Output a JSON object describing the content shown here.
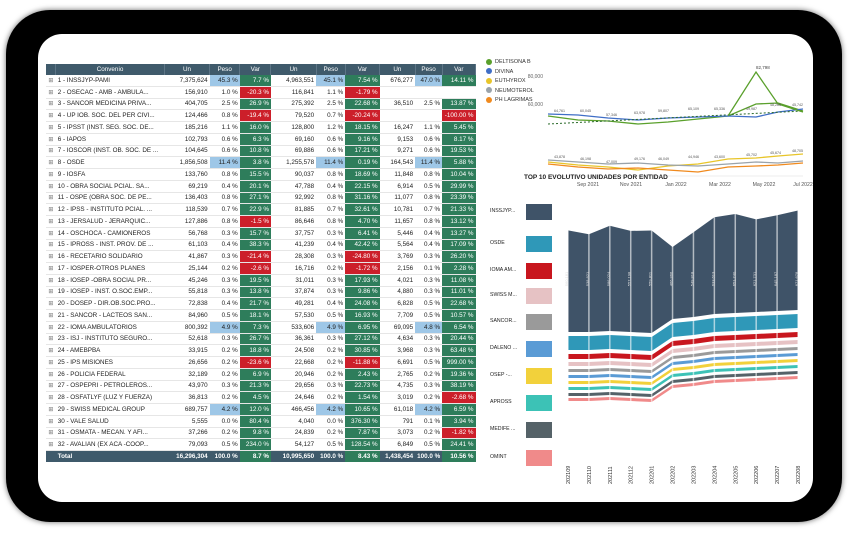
{
  "table": {
    "headers": [
      "Convenio",
      "Un",
      "Peso",
      "Var",
      "Un",
      "Peso",
      "Var",
      "Un",
      "Peso",
      "Var"
    ],
    "rows": [
      {
        "name": "1 - INSSJYP-PAMI",
        "un1": "7,375,624",
        "p1": "45.3 %",
        "v1": "7.7 %",
        "un2": "4,963,551",
        "p2": "45.1 %",
        "v2": "7.54 %",
        "un3": "676,277",
        "p3": "47.0 %",
        "v3": "14.11 %",
        "c1": "g",
        "c2": "g",
        "c3": "g",
        "h1": true,
        "h2": true,
        "h3": true
      },
      {
        "name": "2 - OSECAC - AMB - AMBULA...",
        "un1": "156,910",
        "p1": "1.0 %",
        "v1": "-20.3 %",
        "un2": "116,841",
        "p2": "1.1 %",
        "v2": "-1.79 %",
        "un3": "",
        "p3": "",
        "v3": "",
        "c1": "r",
        "c2": "r",
        "c3": ""
      },
      {
        "name": "3 - SANCOR MEDICINA PRIVA...",
        "un1": "404,705",
        "p1": "2.5 %",
        "v1": "26.9 %",
        "un2": "275,392",
        "p2": "2.5 %",
        "v2": "22.68 %",
        "un3": "36,510",
        "p3": "2.5 %",
        "v3": "13.87 %",
        "c1": "g",
        "c2": "g",
        "c3": "g"
      },
      {
        "name": "4 - UP IOB. SOC. DEL PER CIVI...",
        "un1": "124,466",
        "p1": "0.8 %",
        "v1": "-19.4 %",
        "un2": "79,520",
        "p2": "0.7 %",
        "v2": "-20.24 %",
        "un3": "",
        "p3": "",
        "v3": "-100.00 %",
        "c1": "r",
        "c2": "r",
        "c3": "r"
      },
      {
        "name": "5 - IPSST (INST. SEG. SOC. DE...",
        "un1": "185,216",
        "p1": "1.1 %",
        "v1": "16.0 %",
        "un2": "128,800",
        "p2": "1.2 %",
        "v2": "18.15 %",
        "un3": "16,247",
        "p3": "1.1 %",
        "v3": "5.45 %",
        "c1": "g",
        "c2": "g",
        "c3": "g"
      },
      {
        "name": "6 - IAPOS",
        "un1": "102,793",
        "p1": "0.6 %",
        "v1": "6.3 %",
        "un2": "69,160",
        "p2": "0.6 %",
        "v2": "9.16 %",
        "un3": "9,153",
        "p3": "0.6 %",
        "v3": "8.17 %",
        "c1": "g",
        "c2": "g",
        "c3": "g"
      },
      {
        "name": "7 - IOSCOR (INST. OB. SOC. DE ...",
        "un1": "104,645",
        "p1": "0.6 %",
        "v1": "10.8 %",
        "un2": "69,886",
        "p2": "0.6 %",
        "v2": "17.21 %",
        "un3": "9,271",
        "p3": "0.6 %",
        "v3": "19.53 %",
        "c1": "g",
        "c2": "g",
        "c3": "g"
      },
      {
        "name": "8 - OSDE",
        "un1": "1,856,508",
        "p1": "11.4 %",
        "v1": "3.8 %",
        "un2": "1,255,578",
        "p2": "11.4 %",
        "v2": "0.19 %",
        "un3": "164,543",
        "p3": "11.4 %",
        "v3": "5.88 %",
        "c1": "g",
        "c2": "g",
        "c3": "g",
        "h1": true,
        "h2": true,
        "h3": true
      },
      {
        "name": "9 - IOSFA",
        "un1": "133,760",
        "p1": "0.8 %",
        "v1": "15.5 %",
        "un2": "90,037",
        "p2": "0.8 %",
        "v2": "18.69 %",
        "un3": "11,848",
        "p3": "0.8 %",
        "v3": "10.04 %",
        "c1": "g",
        "c2": "g",
        "c3": "g"
      },
      {
        "name": "10 - OBRA SOCIAL PCIAL. SA...",
        "un1": "69,219",
        "p1": "0.4 %",
        "v1": "20.1 %",
        "un2": "47,788",
        "p2": "0.4 %",
        "v2": "22.15 %",
        "un3": "6,914",
        "p3": "0.5 %",
        "v3": "29.99 %",
        "c1": "g",
        "c2": "g",
        "c3": "g"
      },
      {
        "name": "11 - OSPE (OBRA SOC. DE PE...",
        "un1": "136,403",
        "p1": "0.8 %",
        "v1": "27.1 %",
        "un2": "92,992",
        "p2": "0.8 %",
        "v2": "31.16 %",
        "un3": "11,077",
        "p3": "0.8 %",
        "v3": "23.39 %",
        "c1": "g",
        "c2": "g",
        "c3": "g"
      },
      {
        "name": "12 - IPSS - INSTITUTO PCIAL. ...",
        "un1": "118,539",
        "p1": "0.7 %",
        "v1": "22.9 %",
        "un2": "81,885",
        "p2": "0.7 %",
        "v2": "32.61 %",
        "un3": "10,781",
        "p3": "0.7 %",
        "v3": "21.33 %",
        "c1": "g",
        "c2": "g",
        "c3": "g"
      },
      {
        "name": "13 - JERSALUD - JERARQUIC...",
        "un1": "127,886",
        "p1": "0.8 %",
        "v1": "-1.5 %",
        "un2": "86,646",
        "p2": "0.8 %",
        "v2": "4.70 %",
        "un3": "11,657",
        "p3": "0.8 %",
        "v3": "13.12 %",
        "c1": "r",
        "c2": "g",
        "c3": "g"
      },
      {
        "name": "14 - OSCHOCA - CAMIONEROS",
        "un1": "56,768",
        "p1": "0.3 %",
        "v1": "15.7 %",
        "un2": "37,757",
        "p2": "0.3 %",
        "v2": "6.41 %",
        "un3": "5,446",
        "p3": "0.4 %",
        "v3": "13.27 %",
        "c1": "g",
        "c2": "g",
        "c3": "g"
      },
      {
        "name": "15 - IPROSS - INST. PROV. DE ...",
        "un1": "61,103",
        "p1": "0.4 %",
        "v1": "38.3 %",
        "un2": "41,239",
        "p2": "0.4 %",
        "v2": "42.42 %",
        "un3": "5,564",
        "p3": "0.4 %",
        "v3": "17.09 %",
        "c1": "g",
        "c2": "g",
        "c3": "g"
      },
      {
        "name": "16 - RECETARIO SOLIDARIO",
        "un1": "41,867",
        "p1": "0.3 %",
        "v1": "-21.4 %",
        "un2": "28,308",
        "p2": "0.3 %",
        "v2": "-24.80 %",
        "un3": "3,769",
        "p3": "0.3 %",
        "v3": "26.20 %",
        "c1": "r",
        "c2": "r",
        "c3": "g"
      },
      {
        "name": "17 - IOSPER-OTROS PLANES",
        "un1": "25,144",
        "p1": "0.2 %",
        "v1": "-2.6 %",
        "un2": "16,716",
        "p2": "0.2 %",
        "v2": "-1.72 %",
        "un3": "2,156",
        "p3": "0.1 %",
        "v3": "2.28 %",
        "c1": "r",
        "c2": "r",
        "c3": "g"
      },
      {
        "name": "18 - IOSEP -OBRA SOCIAL PR...",
        "un1": "45,246",
        "p1": "0.3 %",
        "v1": "19.5 %",
        "un2": "31,011",
        "p2": "0.3 %",
        "v2": "17.93 %",
        "un3": "4,021",
        "p3": "0.3 %",
        "v3": "11.08 %",
        "c1": "g",
        "c2": "g",
        "c3": "g"
      },
      {
        "name": "19 - IOSEP - INST. O.SOC.EMP...",
        "un1": "55,818",
        "p1": "0.3 %",
        "v1": "13.8 %",
        "un2": "37,874",
        "p2": "0.3 %",
        "v2": "9.86 %",
        "un3": "4,880",
        "p3": "0.3 %",
        "v3": "11.01 %",
        "c1": "g",
        "c2": "g",
        "c3": "g"
      },
      {
        "name": "20 - DOSEP - DIR.OB.SOC.PRO...",
        "un1": "72,838",
        "p1": "0.4 %",
        "v1": "21.7 %",
        "un2": "49,281",
        "p2": "0.4 %",
        "v2": "24.08 %",
        "un3": "6,828",
        "p3": "0.5 %",
        "v3": "22.68 %",
        "c1": "g",
        "c2": "g",
        "c3": "g"
      },
      {
        "name": "21 - SANCOR - LACTEOS SAN...",
        "un1": "84,960",
        "p1": "0.5 %",
        "v1": "18.1 %",
        "un2": "57,530",
        "p2": "0.5 %",
        "v2": "16.93 %",
        "un3": "7,709",
        "p3": "0.5 %",
        "v3": "10.57 %",
        "c1": "g",
        "c2": "g",
        "c3": "g"
      },
      {
        "name": "22 - IOMA AMBULATORIOS",
        "un1": "800,392",
        "p1": "4.9 %",
        "v1": "7.3 %",
        "un2": "533,606",
        "p2": "4.9 %",
        "v2": "6.95 %",
        "un3": "69,095",
        "p3": "4.8 %",
        "v3": "6.54 %",
        "c1": "g",
        "c2": "g",
        "c3": "g",
        "h1": true,
        "h2": true,
        "h3": true
      },
      {
        "name": "23 - ISJ - INSTITUTO SEGURO...",
        "un1": "52,618",
        "p1": "0.3 %",
        "v1": "26.7 %",
        "un2": "36,361",
        "p2": "0.3 %",
        "v2": "27.12 %",
        "un3": "4,634",
        "p3": "0.3 %",
        "v3": "20.44 %",
        "c1": "g",
        "c2": "g",
        "c3": "g"
      },
      {
        "name": "24 - AMEBPBA",
        "un1": "33,915",
        "p1": "0.2 %",
        "v1": "18.8 %",
        "un2": "24,508",
        "p2": "0.2 %",
        "v2": "30.85 %",
        "un3": "3,968",
        "p3": "0.3 %",
        "v3": "63.48 %",
        "c1": "g",
        "c2": "g",
        "c3": "g"
      },
      {
        "name": "25 - IPS MISIONES",
        "un1": "26,656",
        "p1": "0.2 %",
        "v1": "-23.6 %",
        "un2": "22,668",
        "p2": "0.2 %",
        "v2": "-11.88 %",
        "un3": "6,691",
        "p3": "0.5 %",
        "v3": "999.00 %",
        "c1": "r",
        "c2": "r",
        "c3": "g"
      },
      {
        "name": "26 - POLICIA FEDERAL",
        "un1": "32,189",
        "p1": "0.2 %",
        "v1": "6.9 %",
        "un2": "20,946",
        "p2": "0.2 %",
        "v2": "2.43 %",
        "un3": "2,765",
        "p3": "0.2 %",
        "v3": "19.36 %",
        "c1": "g",
        "c2": "g",
        "c3": "g"
      },
      {
        "name": "27 - OSPEPRI - PETROLEROS...",
        "un1": "43,970",
        "p1": "0.3 %",
        "v1": "21.3 %",
        "un2": "29,656",
        "p2": "0.3 %",
        "v2": "22.73 %",
        "un3": "4,735",
        "p3": "0.3 %",
        "v3": "38.19 %",
        "c1": "g",
        "c2": "g",
        "c3": "g"
      },
      {
        "name": "28 - OSFATLYF (LUZ Y FUERZA)",
        "un1": "36,813",
        "p1": "0.2 %",
        "v1": "4.5 %",
        "un2": "24,646",
        "p2": "0.2 %",
        "v2": "1.54 %",
        "un3": "3,019",
        "p3": "0.2 %",
        "v3": "-2.68 %",
        "c1": "g",
        "c2": "g",
        "c3": "r"
      },
      {
        "name": "29 - SWISS MEDICAL GROUP",
        "un1": "689,757",
        "p1": "4.2 %",
        "v1": "12.0 %",
        "un2": "466,456",
        "p2": "4.2 %",
        "v2": "10.65 %",
        "un3": "61,018",
        "p3": "4.2 %",
        "v3": "6.59 %",
        "c1": "g",
        "c2": "g",
        "c3": "g",
        "h1": true,
        "h2": true,
        "h3": true
      },
      {
        "name": "30 - VALE SALUD",
        "un1": "5,555",
        "p1": "0.0 %",
        "v1": "80.4 %",
        "un2": "4,040",
        "p2": "0.0 %",
        "v2": "376.30 %",
        "un3": "791",
        "p3": "0.1 %",
        "v3": "3.94 %",
        "c1": "g",
        "c2": "g",
        "c3": "g"
      },
      {
        "name": "31 - OSMATA - MECAN. Y AFI...",
        "un1": "37,266",
        "p1": "0.2 %",
        "v1": "9.8 %",
        "un2": "24,839",
        "p2": "0.2 %",
        "v2": "7.87 %",
        "un3": "3,073",
        "p3": "0.2 %",
        "v3": "-1.82 %",
        "c1": "g",
        "c2": "g",
        "c3": "r"
      },
      {
        "name": "32 - AVALIAN (EX ACA -COOP...",
        "un1": "79,093",
        "p1": "0.5 %",
        "v1": "234.0 %",
        "un2": "54,127",
        "p2": "0.5 %",
        "v2": "128.54 %",
        "un3": "6,849",
        "p3": "0.5 %",
        "v3": "24.41 %",
        "c1": "g",
        "c2": "g",
        "c3": "g"
      }
    ],
    "total": {
      "name": "Total",
      "un1": "16,296,304",
      "p1": "100.0 %",
      "v1": "8.7 %",
      "un2": "10,995,650",
      "p2": "100.0 %",
      "v2": "8.43 %",
      "un3": "1,438,454",
      "p3": "100.0 %",
      "v3": "10.56 %"
    }
  },
  "line_chart": {
    "legend": [
      {
        "name": "DELTISONA B",
        "color": "#5aa02c"
      },
      {
        "name": "DIVINA",
        "color": "#3f6ec6"
      },
      {
        "name": "EUTHYROX",
        "color": "#e8c52a"
      },
      {
        "name": "NEUMOTEROL",
        "color": "#9aa3aa"
      },
      {
        "name": "PH LAGRIMAS",
        "color": "#f08a1e"
      }
    ],
    "yticks": [
      "80,000",
      "60,000"
    ],
    "xticks": [
      "Sep 2021",
      "Nov 2021",
      "Jan 2022",
      "Mar 2022",
      "May 2022",
      "Jul 2022"
    ],
    "peak_label": "82,798",
    "point_labels": [
      "64,761",
      "60,045",
      "57,346",
      "63,978",
      "59,807",
      "65,109",
      "65,336",
      "49,987",
      "48,265",
      "45,742",
      "43,878",
      "46,198",
      "47,009",
      "49,176",
      "46,049",
      "44,946",
      "43,600",
      "45,702",
      "45,674",
      "48,705"
    ]
  },
  "ribbon_chart": {
    "title": "TOP 10  EVOLUTIVO UNIDADES POR ENTIDAD",
    "entities": [
      {
        "label": "INSSJYP...",
        "color": "#3f5368"
      },
      {
        "label": "OSDE",
        "color": "#2f98b8"
      },
      {
        "label": "IOMA AM...",
        "color": "#c8161e"
      },
      {
        "label": "SWISS M...",
        "color": "#e6c2c4"
      },
      {
        "label": "SANCOR...",
        "color": "#9a9a9a"
      },
      {
        "label": "DALENO ...",
        "color": "#5a9bd5"
      },
      {
        "label": "OSEP -...",
        "color": "#f2d13b"
      },
      {
        "label": "APROSS",
        "color": "#3cc2b6"
      },
      {
        "label": "MEDIFE ...",
        "color": "#556268"
      },
      {
        "label": "OMINT",
        "color": "#f08a8a"
      }
    ],
    "months": [
      "202109",
      "202110",
      "202111",
      "202112",
      "202201",
      "202202",
      "202203",
      "202204",
      "202205",
      "202206",
      "202207",
      "202208"
    ],
    "top_values": [
      "560,181",
      "538,821",
      "586,024",
      "557,198",
      "559,811",
      "466,866",
      "549,818",
      "633,613",
      "651,740",
      "621,731",
      "645,187",
      "671,678"
    ]
  },
  "chart_data": {
    "type": "area",
    "title": "TOP 10  EVOLUTIVO UNIDADES POR ENTIDAD",
    "categories": [
      "202109",
      "202110",
      "202111",
      "202112",
      "202201",
      "202202",
      "202203",
      "202204",
      "202205",
      "202206",
      "202207",
      "202208"
    ],
    "series": [
      {
        "name": "INSSJYP...",
        "values": [
          560181,
          538821,
          586024,
          557198,
          559811,
          466866,
          549818,
          633613,
          651740,
          621731,
          645187,
          671678
        ]
      }
    ],
    "xlabel": "",
    "ylabel": ""
  }
}
